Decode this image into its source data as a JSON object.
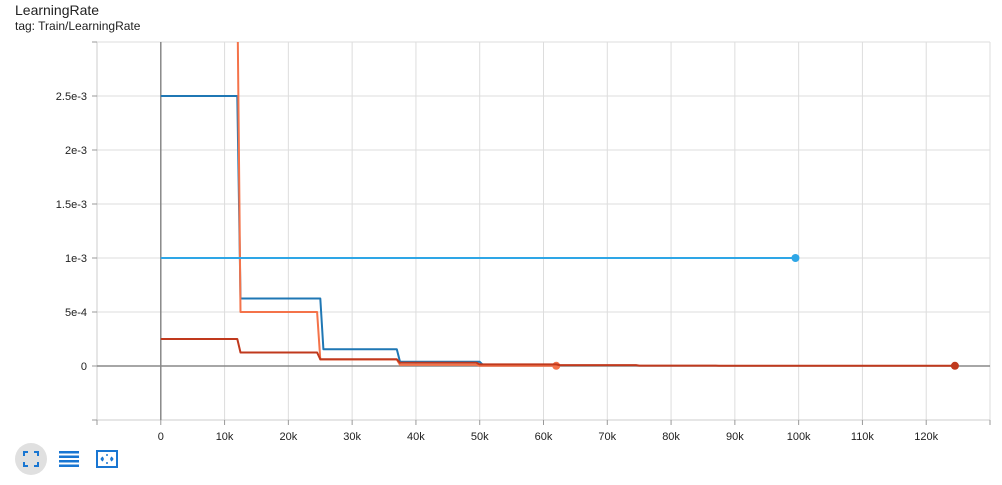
{
  "title": "LearningRate",
  "subtitle": "tag: Train/LearningRate",
  "toolbar": {
    "buttons": [
      {
        "icon": "fullscreen-icon",
        "active": true
      },
      {
        "icon": "toggle-log-scale-icon",
        "active": false
      },
      {
        "icon": "fit-domain-icon",
        "active": false
      }
    ],
    "icon_color": "#1976d2"
  },
  "chart_data": {
    "type": "line",
    "title": "LearningRate",
    "xlabel": "",
    "ylabel": "",
    "xlim": [
      -10000,
      130000
    ],
    "ylim": [
      -0.0005,
      0.003
    ],
    "x_ticks": [
      0,
      10000,
      20000,
      30000,
      40000,
      50000,
      60000,
      70000,
      80000,
      90000,
      100000,
      110000,
      120000
    ],
    "x_tick_labels": [
      "0",
      "10k",
      "20k",
      "30k",
      "40k",
      "50k",
      "60k",
      "70k",
      "80k",
      "90k",
      "100k",
      "110k",
      "120k"
    ],
    "y_ticks": [
      0,
      0.0005,
      0.001,
      0.0015,
      0.002,
      0.0025
    ],
    "y_tick_labels": [
      "0",
      "5e-4",
      "1e-3",
      "1.5e-3",
      "2e-3",
      "2.5e-3"
    ],
    "grid": true,
    "series": [
      {
        "color": "#1f77b4",
        "x": [
          0,
          12000,
          12500,
          25000,
          25500,
          37000,
          37500,
          50000,
          50500,
          62000
        ],
        "y": [
          0.0025,
          0.0025,
          0.000625,
          0.000625,
          0.000156,
          0.000156,
          3.9e-05,
          3.9e-05,
          1e-05,
          1e-05
        ],
        "end_marker": false
      },
      {
        "color": "#f4734a",
        "x": [
          12000,
          12500,
          24500,
          25000,
          37000,
          37500,
          49500,
          50000,
          62000
        ],
        "y": [
          0.0035,
          0.0005,
          0.0005,
          6e-05,
          6e-05,
          1e-05,
          1e-05,
          2e-06,
          2e-06
        ],
        "end_marker": true
      },
      {
        "color": "#2ea6e6",
        "x": [
          0,
          99500
        ],
        "y": [
          0.001,
          0.001
        ],
        "end_marker": true
      },
      {
        "color": "#c0391d",
        "x": [
          0,
          12000,
          12500,
          24500,
          25000,
          37000,
          37500,
          49500,
          50000,
          62000,
          62500,
          74500,
          75000,
          87000,
          87500,
          124500
        ],
        "y": [
          0.00025,
          0.00025,
          0.000125,
          0.000125,
          6.25e-05,
          6.25e-05,
          3e-05,
          3e-05,
          1.5e-05,
          1.5e-05,
          8e-06,
          8e-06,
          4e-06,
          4e-06,
          2e-06,
          2e-06
        ],
        "end_marker": true
      }
    ]
  }
}
